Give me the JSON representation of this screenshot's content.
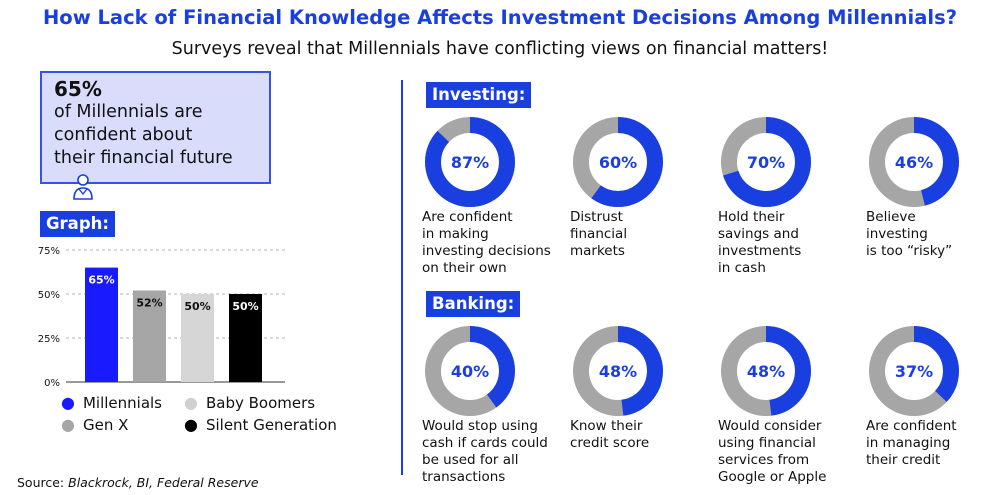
{
  "title": "How Lack of Financial Knowledge Affects Investment Decisions Among Millennials?",
  "subtitle": "Surveys reveal that Millennials have conflicting views on financial matters!",
  "stat": {
    "value": "65%",
    "lines": [
      "of Millennials are",
      "confident about",
      "their financial future"
    ]
  },
  "colors": {
    "accent": "#1a3fe0",
    "donut_fill": "#1a3fe0",
    "donut_rest": "#a6a6a6",
    "box_bg": "#d9dcfb"
  },
  "graph_tag": "Graph:",
  "investing_tag": "Investing:",
  "banking_tag": "Banking:",
  "chart_data": [
    {
      "type": "bar",
      "categories": [
        "Millennials",
        "Gen X",
        "Baby Boomers",
        "Silent Generation"
      ],
      "values": [
        65,
        52,
        50,
        50
      ],
      "value_labels": [
        "65%",
        "52%",
        "50%",
        "50%"
      ],
      "bar_colors": [
        "#1a1aff",
        "#a6a6a6",
        "#d6d6d6",
        "#000000"
      ],
      "yticks": [
        "0%",
        "25%",
        "50%",
        "75%"
      ],
      "ylim": [
        0,
        75
      ],
      "grid": true,
      "legend": [
        {
          "label": "Millennials",
          "color": "#1a1aff"
        },
        {
          "label": "Baby Boomers",
          "color": "#d0d0d0"
        },
        {
          "label": "Gen X",
          "color": "#a6a6a6"
        },
        {
          "label": "Silent Generation",
          "color": "#000000"
        }
      ]
    },
    {
      "type": "pie",
      "section": "Investing",
      "items": [
        {
          "value": 87,
          "label": "87%",
          "text": [
            "Are confident",
            "in making",
            "investing decisions",
            "on their own"
          ]
        },
        {
          "value": 60,
          "label": "60%",
          "text": [
            "Distrust",
            "financial",
            "markets"
          ]
        },
        {
          "value": 70,
          "label": "70%",
          "text": [
            "Hold their",
            "savings and",
            "investments",
            "in cash"
          ]
        },
        {
          "value": 46,
          "label": "46%",
          "text": [
            "Believe",
            "investing",
            "is too “risky”"
          ]
        }
      ]
    },
    {
      "type": "pie",
      "section": "Banking",
      "items": [
        {
          "value": 40,
          "label": "40%",
          "text": [
            "Would stop using",
            "cash if cards could",
            "be used for all",
            "transactions"
          ]
        },
        {
          "value": 48,
          "label": "48%",
          "text": [
            "Know their",
            "credit score"
          ]
        },
        {
          "value": 48,
          "label": "48%",
          "text": [
            "Would consider",
            "using financial",
            "services from",
            "Google or Apple"
          ]
        },
        {
          "value": 37,
          "label": "37%",
          "text": [
            "Are confident",
            "in managing",
            "their credit"
          ]
        }
      ]
    }
  ],
  "source": {
    "prefix": "Source: ",
    "text": "Blackrock, BI, Federal Reserve"
  }
}
